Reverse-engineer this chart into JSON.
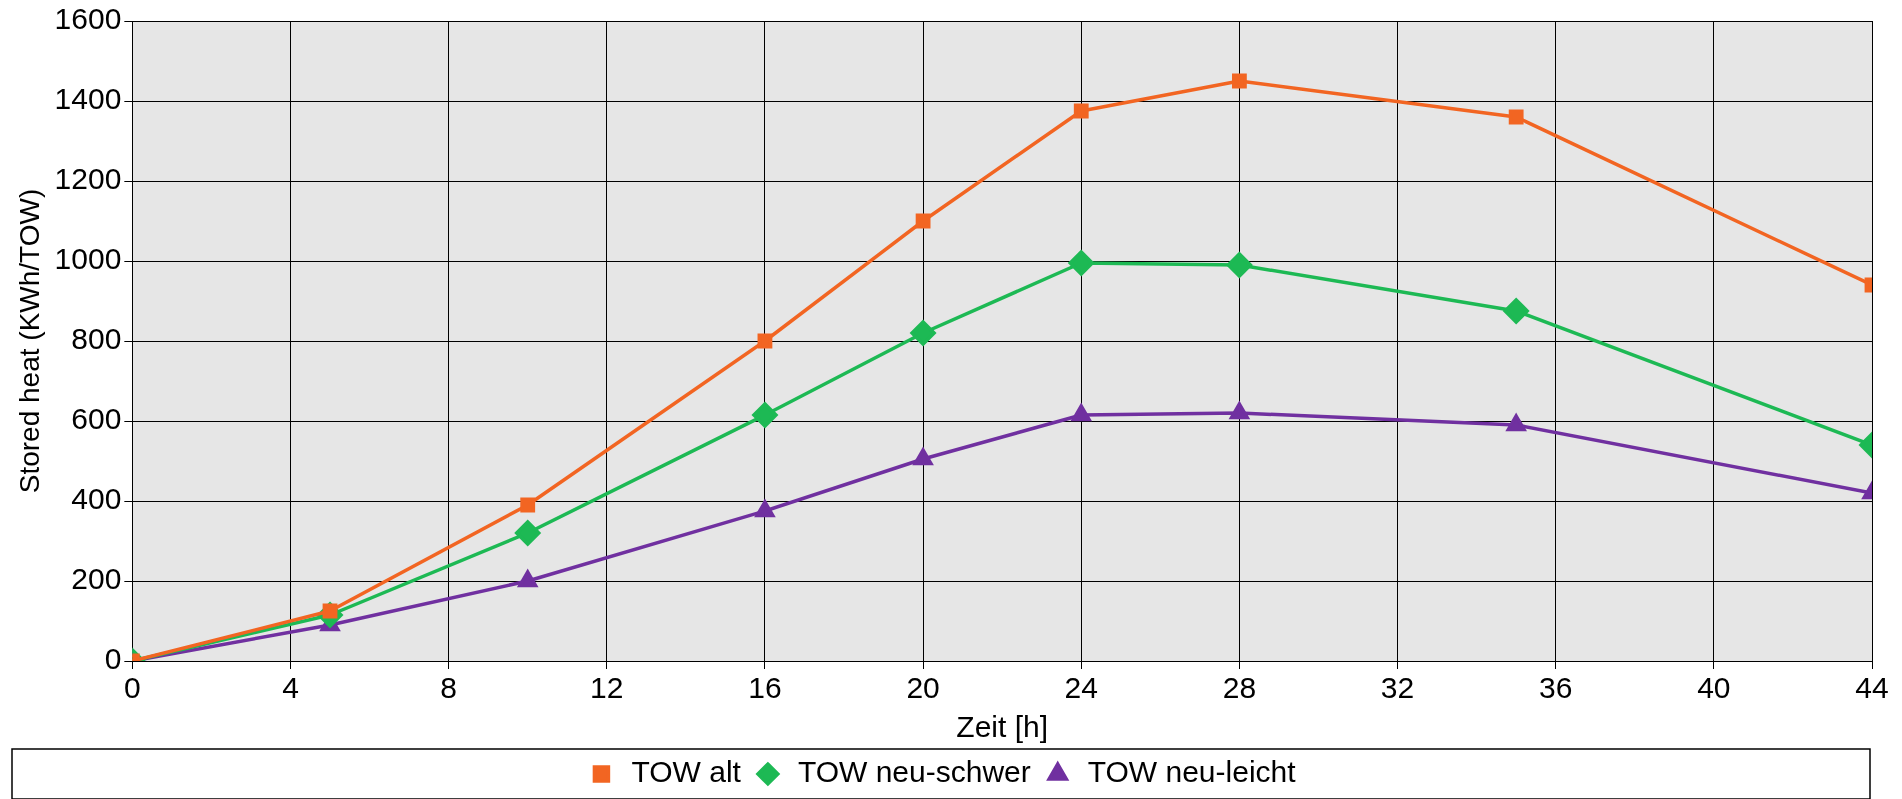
{
  "chart_data": {
    "type": "line",
    "xlabel": "Zeit [h]",
    "ylabel": "Stored heat (KWh/TOW)",
    "x": [
      0,
      5,
      10,
      16,
      20,
      24,
      28,
      35,
      44
    ],
    "series": [
      {
        "name": "TOW alt",
        "color": "#f26522",
        "marker": "square",
        "values": [
          0,
          125,
          390,
          800,
          1100,
          1375,
          1450,
          1360,
          940
        ]
      },
      {
        "name": "TOW neu-schwer",
        "color": "#1db954",
        "marker": "diamond",
        "values": [
          0,
          115,
          320,
          615,
          820,
          995,
          990,
          875,
          540
        ]
      },
      {
        "name": "TOW neu-leicht",
        "color": "#7030a0",
        "marker": "triangle",
        "values": [
          0,
          90,
          200,
          375,
          505,
          615,
          620,
          590,
          420
        ]
      }
    ],
    "xlim": [
      0,
      44
    ],
    "xticks": [
      0,
      4,
      8,
      12,
      16,
      20,
      24,
      28,
      32,
      36,
      40,
      44
    ],
    "ylim": [
      0,
      1600
    ],
    "yticks": [
      0,
      200,
      400,
      600,
      800,
      1000,
      1200,
      1400,
      1600
    ],
    "grid": true,
    "legend": "bottom",
    "line_style": "solid"
  }
}
